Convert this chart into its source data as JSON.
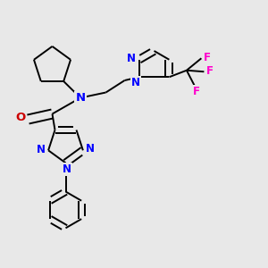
{
  "bg_color": "#e8e8e8",
  "bond_color": "#000000",
  "N_color": "#0000ff",
  "O_color": "#cc0000",
  "F_color": "#ff00cc",
  "line_width": 1.4,
  "dbo": 0.013,
  "figsize": [
    3.0,
    3.0
  ],
  "dpi": 100,
  "xlim": [
    0,
    1
  ],
  "ylim": [
    0,
    1
  ]
}
